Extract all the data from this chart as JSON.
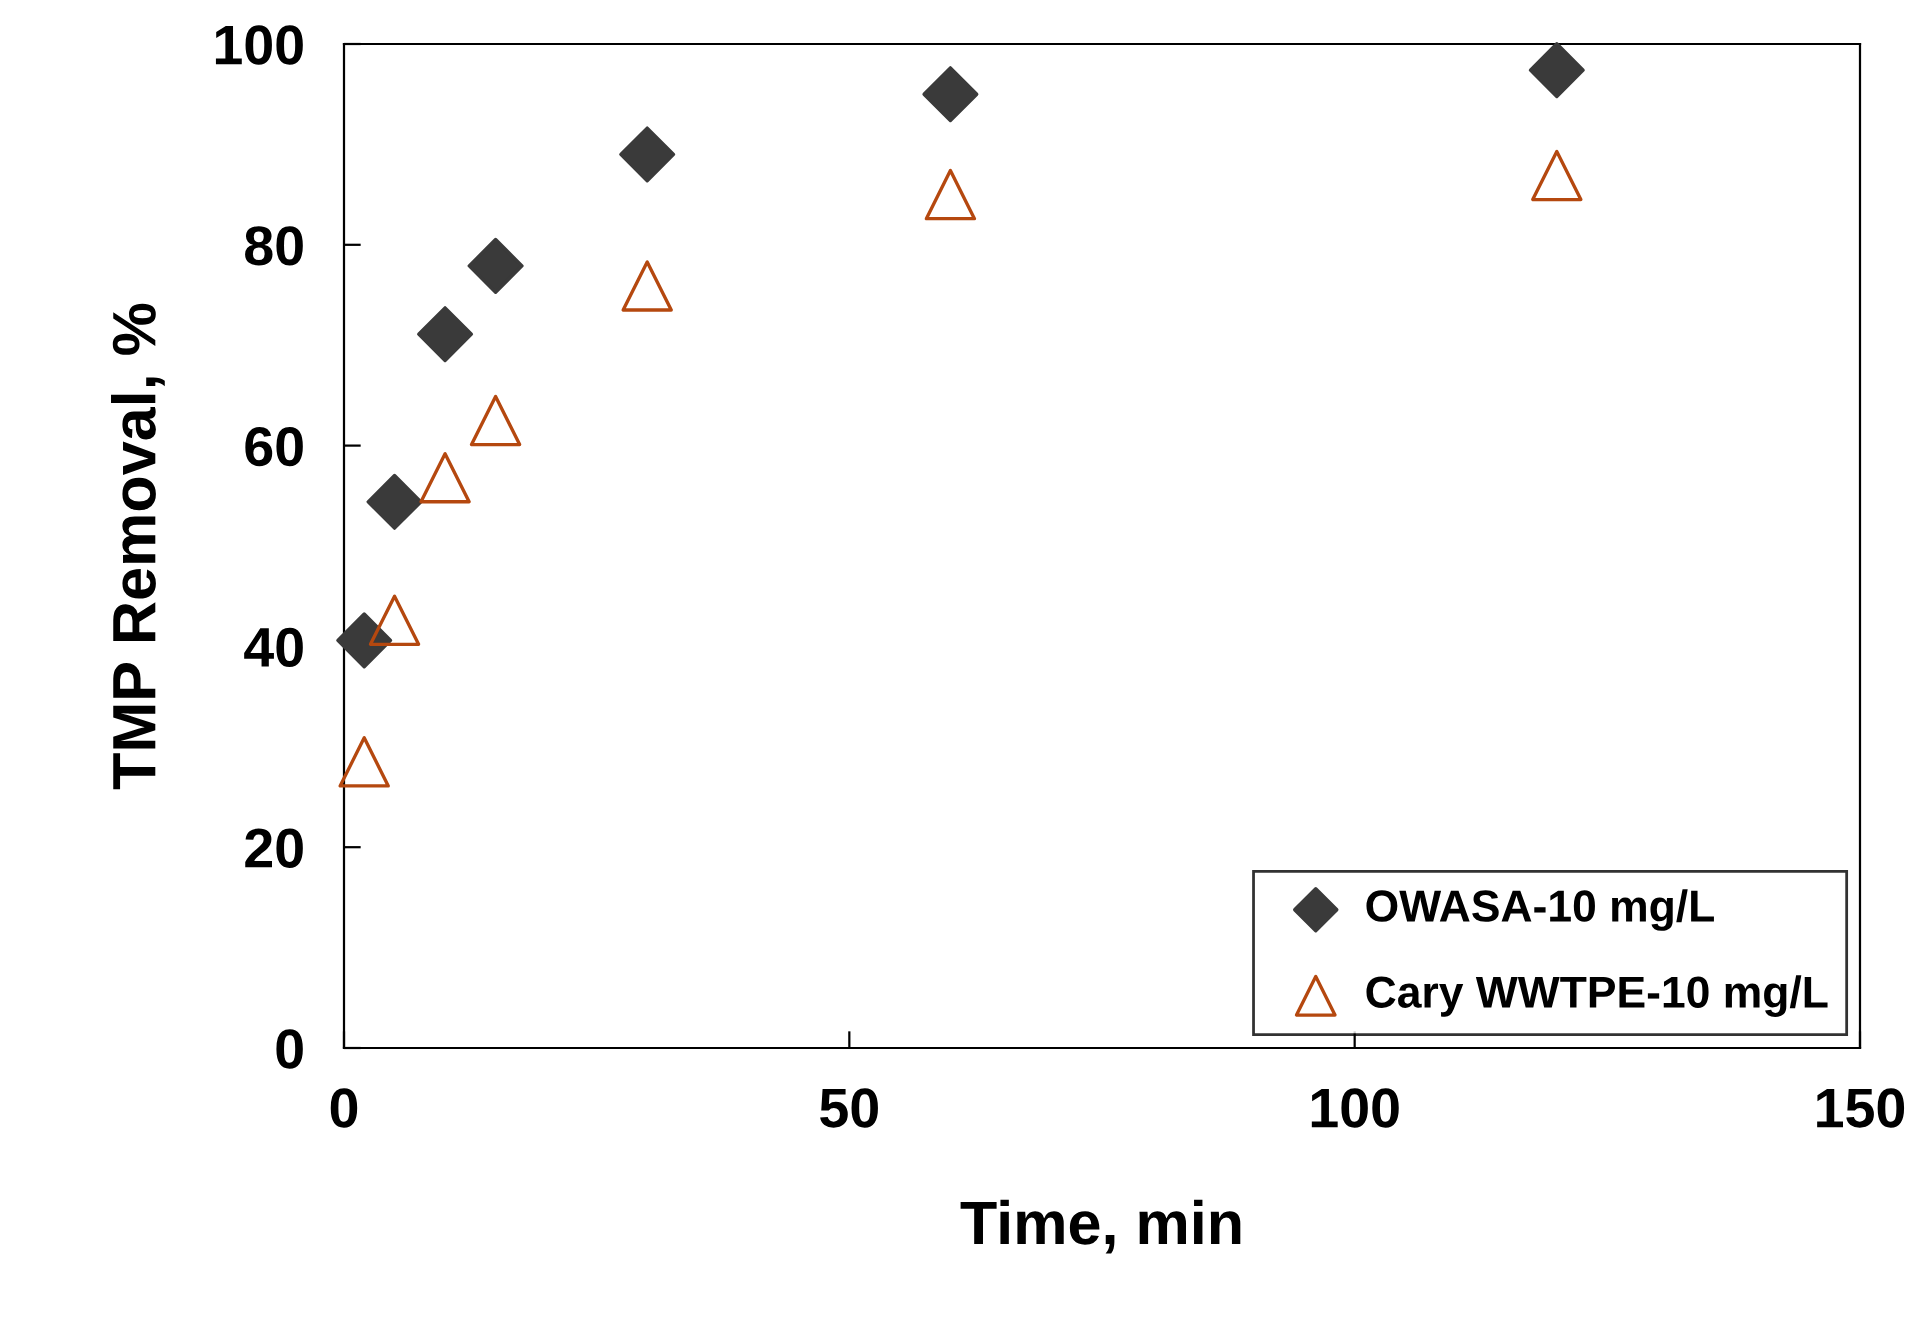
{
  "chart_data": {
    "type": "scatter",
    "xlabel": "Time, min",
    "ylabel": "TMP Removal, %",
    "xlim": [
      0,
      150
    ],
    "xticks": [
      0,
      50,
      100,
      150
    ],
    "ylim": [
      0,
      100
    ],
    "yticks": [
      0,
      20,
      40,
      60,
      80,
      100
    ],
    "grid": false,
    "legend": "bottom right",
    "series": [
      {
        "name": "OWASA-10 mg/L",
        "color": "#3a3a3a",
        "marker": "diamond",
        "x": [
          2,
          5,
          10,
          15,
          30,
          60,
          120
        ],
        "values": [
          40.6,
          54.4,
          71.1,
          77.9,
          89,
          95,
          97.4
        ]
      },
      {
        "name": "Cary WWTPE-10 mg/L",
        "color": "#b5480f",
        "marker": "triangle",
        "x": [
          2,
          5,
          10,
          15,
          30,
          60,
          120
        ],
        "values": [
          28.5,
          42.6,
          56.8,
          62.5,
          75.9,
          85,
          86.9
        ]
      }
    ]
  }
}
